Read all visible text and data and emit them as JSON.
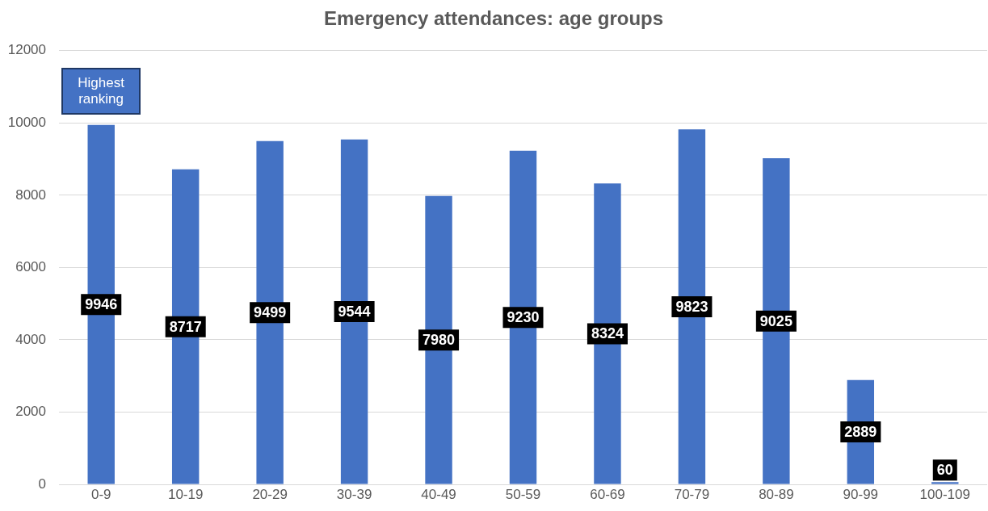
{
  "chart_data": {
    "type": "bar",
    "title": "Emergency attendances: age groups",
    "categories": [
      "0-9",
      "10-19",
      "20-29",
      "30-39",
      "40-49",
      "50-59",
      "60-69",
      "70-79",
      "80-89",
      "90-99",
      "100-109"
    ],
    "values": [
      9946,
      8717,
      9499,
      9544,
      7980,
      9230,
      8324,
      9823,
      9025,
      2889,
      60
    ],
    "color": "#4472c4",
    "ylim": [
      0,
      12000
    ],
    "yticks": [
      0,
      2000,
      4000,
      6000,
      8000,
      10000,
      12000
    ],
    "grid": "y",
    "data_labels": true,
    "annotations": [
      {
        "text": "Highest ranking",
        "x": "0-9",
        "y": 9946
      }
    ]
  }
}
